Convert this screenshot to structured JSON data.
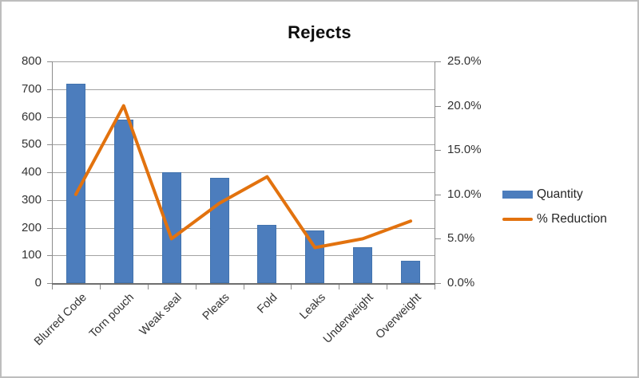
{
  "chart_data": {
    "type": "combo-bar-line",
    "title": "Rejects",
    "categories": [
      "Blurred Code",
      "Torn pouch",
      "Weak seal",
      "Pleats",
      "Fold",
      "Leaks",
      "Underweight",
      "Overweight"
    ],
    "series": [
      {
        "name": "Quantity",
        "type": "bar",
        "axis": "left",
        "color": "#4c7dbd",
        "values": [
          720,
          590,
          400,
          380,
          210,
          190,
          130,
          80
        ]
      },
      {
        "name": "% Reduction",
        "type": "line",
        "axis": "right",
        "color": "#e2720e",
        "values": [
          10.0,
          20.0,
          5.0,
          9.0,
          12.0,
          4.0,
          5.0,
          7.0
        ]
      }
    ],
    "left_axis": {
      "min": 0,
      "max": 800,
      "step": 100,
      "tick_labels": [
        "800",
        "700",
        "600",
        "500",
        "400",
        "300",
        "200",
        "100",
        "0"
      ]
    },
    "right_axis": {
      "min": 0,
      "max": 25,
      "step": 5,
      "tick_labels": [
        "25.0%",
        "20.0%",
        "15.0%",
        "10.0%",
        "5.0%",
        "0.0%"
      ]
    },
    "grid": true,
    "legend_position": "right",
    "legend_entries": [
      "Quantity",
      "% Reduction"
    ]
  },
  "colors": {
    "bar_fill": "#4c7dbd",
    "line_stroke": "#e2720e",
    "gridline": "#a2a2a2",
    "axis_text": "#333333",
    "title_text": "#0d0d0d",
    "background": "#ffffff",
    "frame_border": "#bdbdbd"
  }
}
